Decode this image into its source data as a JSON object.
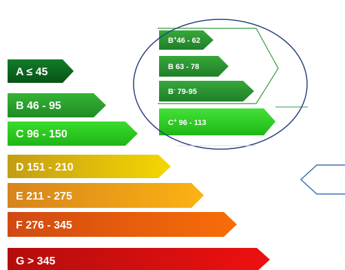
{
  "main_scale": [
    {
      "label": "A ≤ 45",
      "color": "#0b6b1f"
    },
    {
      "label": "B 46 - 95",
      "color": "#27a12a"
    },
    {
      "label": "C 96 - 150",
      "color": "#2bcc1e"
    },
    {
      "label": "D 151 - 210",
      "color": "#d8c70a"
    },
    {
      "label": "E 211 - 275",
      "color": "#f09418"
    },
    {
      "label": "F 276 - 345",
      "color": "#ea5a10"
    },
    {
      "label": "G > 345",
      "color": "#d71010"
    }
  ],
  "zoom_scale": [
    {
      "main": "B",
      "sup": "+",
      "rest": "46 - 62",
      "color": "#2b9430"
    },
    {
      "main": "B",
      "sup": "",
      "rest": " 63 - 78",
      "color": "#2b9430"
    },
    {
      "main": "B",
      "sup": "-",
      "rest": " 79-95",
      "color": "#2b9430"
    },
    {
      "main": "C",
      "sup": "+",
      "rest": " 96 - 113",
      "color": "#2bcc1e"
    }
  ],
  "colors": {
    "ellipse_stroke": "#2a3f82",
    "outline_stroke": "#2e9a3a",
    "pointer_stroke": "#3a6fb0"
  }
}
